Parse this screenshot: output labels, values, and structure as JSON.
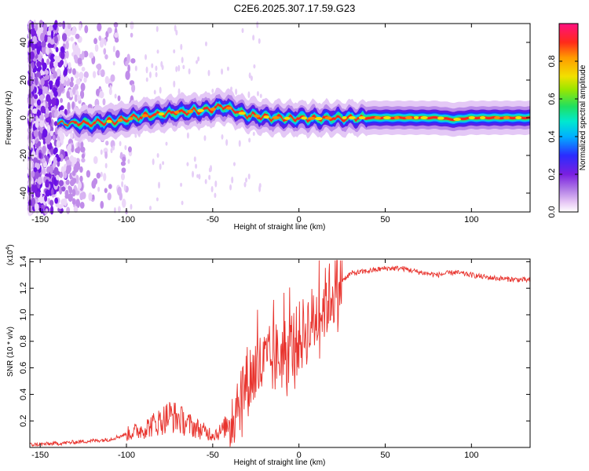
{
  "title": "C2E6.2025.307.17.59.G23",
  "chart_data": [
    {
      "type": "heatmap",
      "panel": "spectrogram",
      "xlabel": "Height of straight line (km)",
      "ylabel": "Frequency (Hz)",
      "xlim": [
        -156,
        134
      ],
      "ylim": [
        -50,
        50
      ],
      "xticks": [
        -150,
        -100,
        -50,
        0,
        50,
        100
      ],
      "xtick_labels": [
        "-150",
        "-100",
        "-50",
        "0",
        "50",
        "100"
      ],
      "yticks": [
        -40,
        -20,
        0,
        20,
        40
      ],
      "ytick_labels": [
        "-40",
        "-20",
        "0",
        "20",
        "40"
      ],
      "ridge": {
        "x": [
          -140,
          -120,
          -110,
          -100,
          -90,
          -80,
          -70,
          -60,
          -50,
          -45,
          -40,
          -35,
          -30,
          -25,
          -20,
          -15,
          -10,
          -5,
          0,
          10,
          20,
          40,
          60,
          80,
          90,
          100,
          120,
          134
        ],
        "y": [
          -3,
          -3,
          -2,
          -1,
          1,
          2,
          3,
          3.5,
          4.5,
          6,
          5,
          3,
          1.5,
          1,
          0.5,
          0,
          0,
          -0.5,
          0,
          -0.5,
          0,
          0,
          0,
          0,
          -1,
          0,
          0,
          0
        ]
      },
      "colorbar": {
        "label": "Normalized spectral amplitude",
        "range": [
          0,
          1
        ],
        "ticks": [
          0.0,
          0.2,
          0.4,
          0.6,
          0.8
        ],
        "tick_labels": [
          "0.0",
          "0.2",
          "0.4",
          "0.6",
          "0.8"
        ]
      }
    },
    {
      "type": "line",
      "panel": "snr",
      "xlabel": "Height of straight line (km)",
      "ylabel": "SNR (10 * v/v)",
      "y_multiplier": "(x10",
      "y_multiplier_exp": "4",
      "y_multiplier_close": ")",
      "xlim": [
        -156,
        134
      ],
      "ylim": [
        0,
        1.42
      ],
      "xticks": [
        -150,
        -100,
        -50,
        0,
        50,
        100
      ],
      "xtick_labels": [
        "-150",
        "-100",
        "-50",
        "0",
        "50",
        "100"
      ],
      "yticks": [
        0.2,
        0.4,
        0.6,
        0.8,
        1.0,
        1.2,
        1.4
      ],
      "ytick_labels": [
        "0.2",
        "0.4",
        "0.6",
        "0.8",
        "1.0",
        "1.2",
        "1.4"
      ],
      "color": "#e8332d",
      "envelope": {
        "x": [
          -156,
          -140,
          -120,
          -110,
          -100,
          -90,
          -80,
          -75,
          -70,
          -65,
          -60,
          -55,
          -50,
          -45,
          -40,
          -35,
          -30,
          -25,
          -20,
          -15,
          -10,
          -5,
          0,
          5,
          10,
          15,
          20,
          25,
          30,
          40,
          50,
          60,
          70,
          80,
          90,
          100,
          110,
          120,
          134
        ],
        "y": [
          0.02,
          0.03,
          0.05,
          0.06,
          0.1,
          0.14,
          0.2,
          0.24,
          0.22,
          0.18,
          0.15,
          0.12,
          0.1,
          0.12,
          0.2,
          0.38,
          0.5,
          0.58,
          0.62,
          0.66,
          0.7,
          0.76,
          0.82,
          0.9,
          0.98,
          1.08,
          1.18,
          1.26,
          1.31,
          1.33,
          1.35,
          1.35,
          1.32,
          1.3,
          1.32,
          1.3,
          1.28,
          1.27,
          1.26
        ]
      }
    }
  ]
}
